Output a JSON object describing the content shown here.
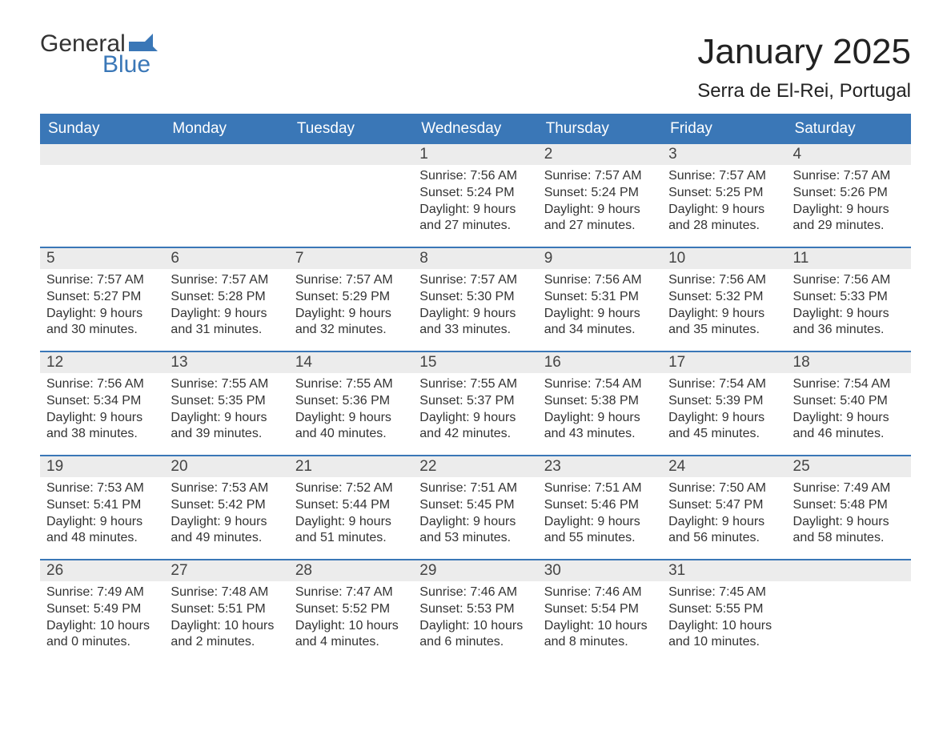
{
  "logo": {
    "top": "General",
    "bottom": "Blue",
    "flag_color": "#3a77b7"
  },
  "title": "January 2025",
  "location": "Serra de El-Rei, Portugal",
  "colors": {
    "header_bg": "#3a77b7",
    "header_text": "#ffffff",
    "daynum_bg": "#ececec",
    "border": "#3a77b7",
    "body_text": "#333333",
    "background": "#ffffff"
  },
  "fonts": {
    "title_size_pt": 33,
    "location_size_pt": 18,
    "header_size_pt": 14,
    "daynum_size_pt": 14,
    "body_size_pt": 12
  },
  "day_headers": [
    "Sunday",
    "Monday",
    "Tuesday",
    "Wednesday",
    "Thursday",
    "Friday",
    "Saturday"
  ],
  "weeks": [
    [
      {
        "n": "",
        "sunrise": "",
        "sunset": "",
        "day1": "",
        "day2": ""
      },
      {
        "n": "",
        "sunrise": "",
        "sunset": "",
        "day1": "",
        "day2": ""
      },
      {
        "n": "",
        "sunrise": "",
        "sunset": "",
        "day1": "",
        "day2": ""
      },
      {
        "n": "1",
        "sunrise": "Sunrise: 7:56 AM",
        "sunset": "Sunset: 5:24 PM",
        "day1": "Daylight: 9 hours",
        "day2": "and 27 minutes."
      },
      {
        "n": "2",
        "sunrise": "Sunrise: 7:57 AM",
        "sunset": "Sunset: 5:24 PM",
        "day1": "Daylight: 9 hours",
        "day2": "and 27 minutes."
      },
      {
        "n": "3",
        "sunrise": "Sunrise: 7:57 AM",
        "sunset": "Sunset: 5:25 PM",
        "day1": "Daylight: 9 hours",
        "day2": "and 28 minutes."
      },
      {
        "n": "4",
        "sunrise": "Sunrise: 7:57 AM",
        "sunset": "Sunset: 5:26 PM",
        "day1": "Daylight: 9 hours",
        "day2": "and 29 minutes."
      }
    ],
    [
      {
        "n": "5",
        "sunrise": "Sunrise: 7:57 AM",
        "sunset": "Sunset: 5:27 PM",
        "day1": "Daylight: 9 hours",
        "day2": "and 30 minutes."
      },
      {
        "n": "6",
        "sunrise": "Sunrise: 7:57 AM",
        "sunset": "Sunset: 5:28 PM",
        "day1": "Daylight: 9 hours",
        "day2": "and 31 minutes."
      },
      {
        "n": "7",
        "sunrise": "Sunrise: 7:57 AM",
        "sunset": "Sunset: 5:29 PM",
        "day1": "Daylight: 9 hours",
        "day2": "and 32 minutes."
      },
      {
        "n": "8",
        "sunrise": "Sunrise: 7:57 AM",
        "sunset": "Sunset: 5:30 PM",
        "day1": "Daylight: 9 hours",
        "day2": "and 33 minutes."
      },
      {
        "n": "9",
        "sunrise": "Sunrise: 7:56 AM",
        "sunset": "Sunset: 5:31 PM",
        "day1": "Daylight: 9 hours",
        "day2": "and 34 minutes."
      },
      {
        "n": "10",
        "sunrise": "Sunrise: 7:56 AM",
        "sunset": "Sunset: 5:32 PM",
        "day1": "Daylight: 9 hours",
        "day2": "and 35 minutes."
      },
      {
        "n": "11",
        "sunrise": "Sunrise: 7:56 AM",
        "sunset": "Sunset: 5:33 PM",
        "day1": "Daylight: 9 hours",
        "day2": "and 36 minutes."
      }
    ],
    [
      {
        "n": "12",
        "sunrise": "Sunrise: 7:56 AM",
        "sunset": "Sunset: 5:34 PM",
        "day1": "Daylight: 9 hours",
        "day2": "and 38 minutes."
      },
      {
        "n": "13",
        "sunrise": "Sunrise: 7:55 AM",
        "sunset": "Sunset: 5:35 PM",
        "day1": "Daylight: 9 hours",
        "day2": "and 39 minutes."
      },
      {
        "n": "14",
        "sunrise": "Sunrise: 7:55 AM",
        "sunset": "Sunset: 5:36 PM",
        "day1": "Daylight: 9 hours",
        "day2": "and 40 minutes."
      },
      {
        "n": "15",
        "sunrise": "Sunrise: 7:55 AM",
        "sunset": "Sunset: 5:37 PM",
        "day1": "Daylight: 9 hours",
        "day2": "and 42 minutes."
      },
      {
        "n": "16",
        "sunrise": "Sunrise: 7:54 AM",
        "sunset": "Sunset: 5:38 PM",
        "day1": "Daylight: 9 hours",
        "day2": "and 43 minutes."
      },
      {
        "n": "17",
        "sunrise": "Sunrise: 7:54 AM",
        "sunset": "Sunset: 5:39 PM",
        "day1": "Daylight: 9 hours",
        "day2": "and 45 minutes."
      },
      {
        "n": "18",
        "sunrise": "Sunrise: 7:54 AM",
        "sunset": "Sunset: 5:40 PM",
        "day1": "Daylight: 9 hours",
        "day2": "and 46 minutes."
      }
    ],
    [
      {
        "n": "19",
        "sunrise": "Sunrise: 7:53 AM",
        "sunset": "Sunset: 5:41 PM",
        "day1": "Daylight: 9 hours",
        "day2": "and 48 minutes."
      },
      {
        "n": "20",
        "sunrise": "Sunrise: 7:53 AM",
        "sunset": "Sunset: 5:42 PM",
        "day1": "Daylight: 9 hours",
        "day2": "and 49 minutes."
      },
      {
        "n": "21",
        "sunrise": "Sunrise: 7:52 AM",
        "sunset": "Sunset: 5:44 PM",
        "day1": "Daylight: 9 hours",
        "day2": "and 51 minutes."
      },
      {
        "n": "22",
        "sunrise": "Sunrise: 7:51 AM",
        "sunset": "Sunset: 5:45 PM",
        "day1": "Daylight: 9 hours",
        "day2": "and 53 minutes."
      },
      {
        "n": "23",
        "sunrise": "Sunrise: 7:51 AM",
        "sunset": "Sunset: 5:46 PM",
        "day1": "Daylight: 9 hours",
        "day2": "and 55 minutes."
      },
      {
        "n": "24",
        "sunrise": "Sunrise: 7:50 AM",
        "sunset": "Sunset: 5:47 PM",
        "day1": "Daylight: 9 hours",
        "day2": "and 56 minutes."
      },
      {
        "n": "25",
        "sunrise": "Sunrise: 7:49 AM",
        "sunset": "Sunset: 5:48 PM",
        "day1": "Daylight: 9 hours",
        "day2": "and 58 minutes."
      }
    ],
    [
      {
        "n": "26",
        "sunrise": "Sunrise: 7:49 AM",
        "sunset": "Sunset: 5:49 PM",
        "day1": "Daylight: 10 hours",
        "day2": "and 0 minutes."
      },
      {
        "n": "27",
        "sunrise": "Sunrise: 7:48 AM",
        "sunset": "Sunset: 5:51 PM",
        "day1": "Daylight: 10 hours",
        "day2": "and 2 minutes."
      },
      {
        "n": "28",
        "sunrise": "Sunrise: 7:47 AM",
        "sunset": "Sunset: 5:52 PM",
        "day1": "Daylight: 10 hours",
        "day2": "and 4 minutes."
      },
      {
        "n": "29",
        "sunrise": "Sunrise: 7:46 AM",
        "sunset": "Sunset: 5:53 PM",
        "day1": "Daylight: 10 hours",
        "day2": "and 6 minutes."
      },
      {
        "n": "30",
        "sunrise": "Sunrise: 7:46 AM",
        "sunset": "Sunset: 5:54 PM",
        "day1": "Daylight: 10 hours",
        "day2": "and 8 minutes."
      },
      {
        "n": "31",
        "sunrise": "Sunrise: 7:45 AM",
        "sunset": "Sunset: 5:55 PM",
        "day1": "Daylight: 10 hours",
        "day2": "and 10 minutes."
      },
      {
        "n": "",
        "sunrise": "",
        "sunset": "",
        "day1": "",
        "day2": ""
      }
    ]
  ]
}
